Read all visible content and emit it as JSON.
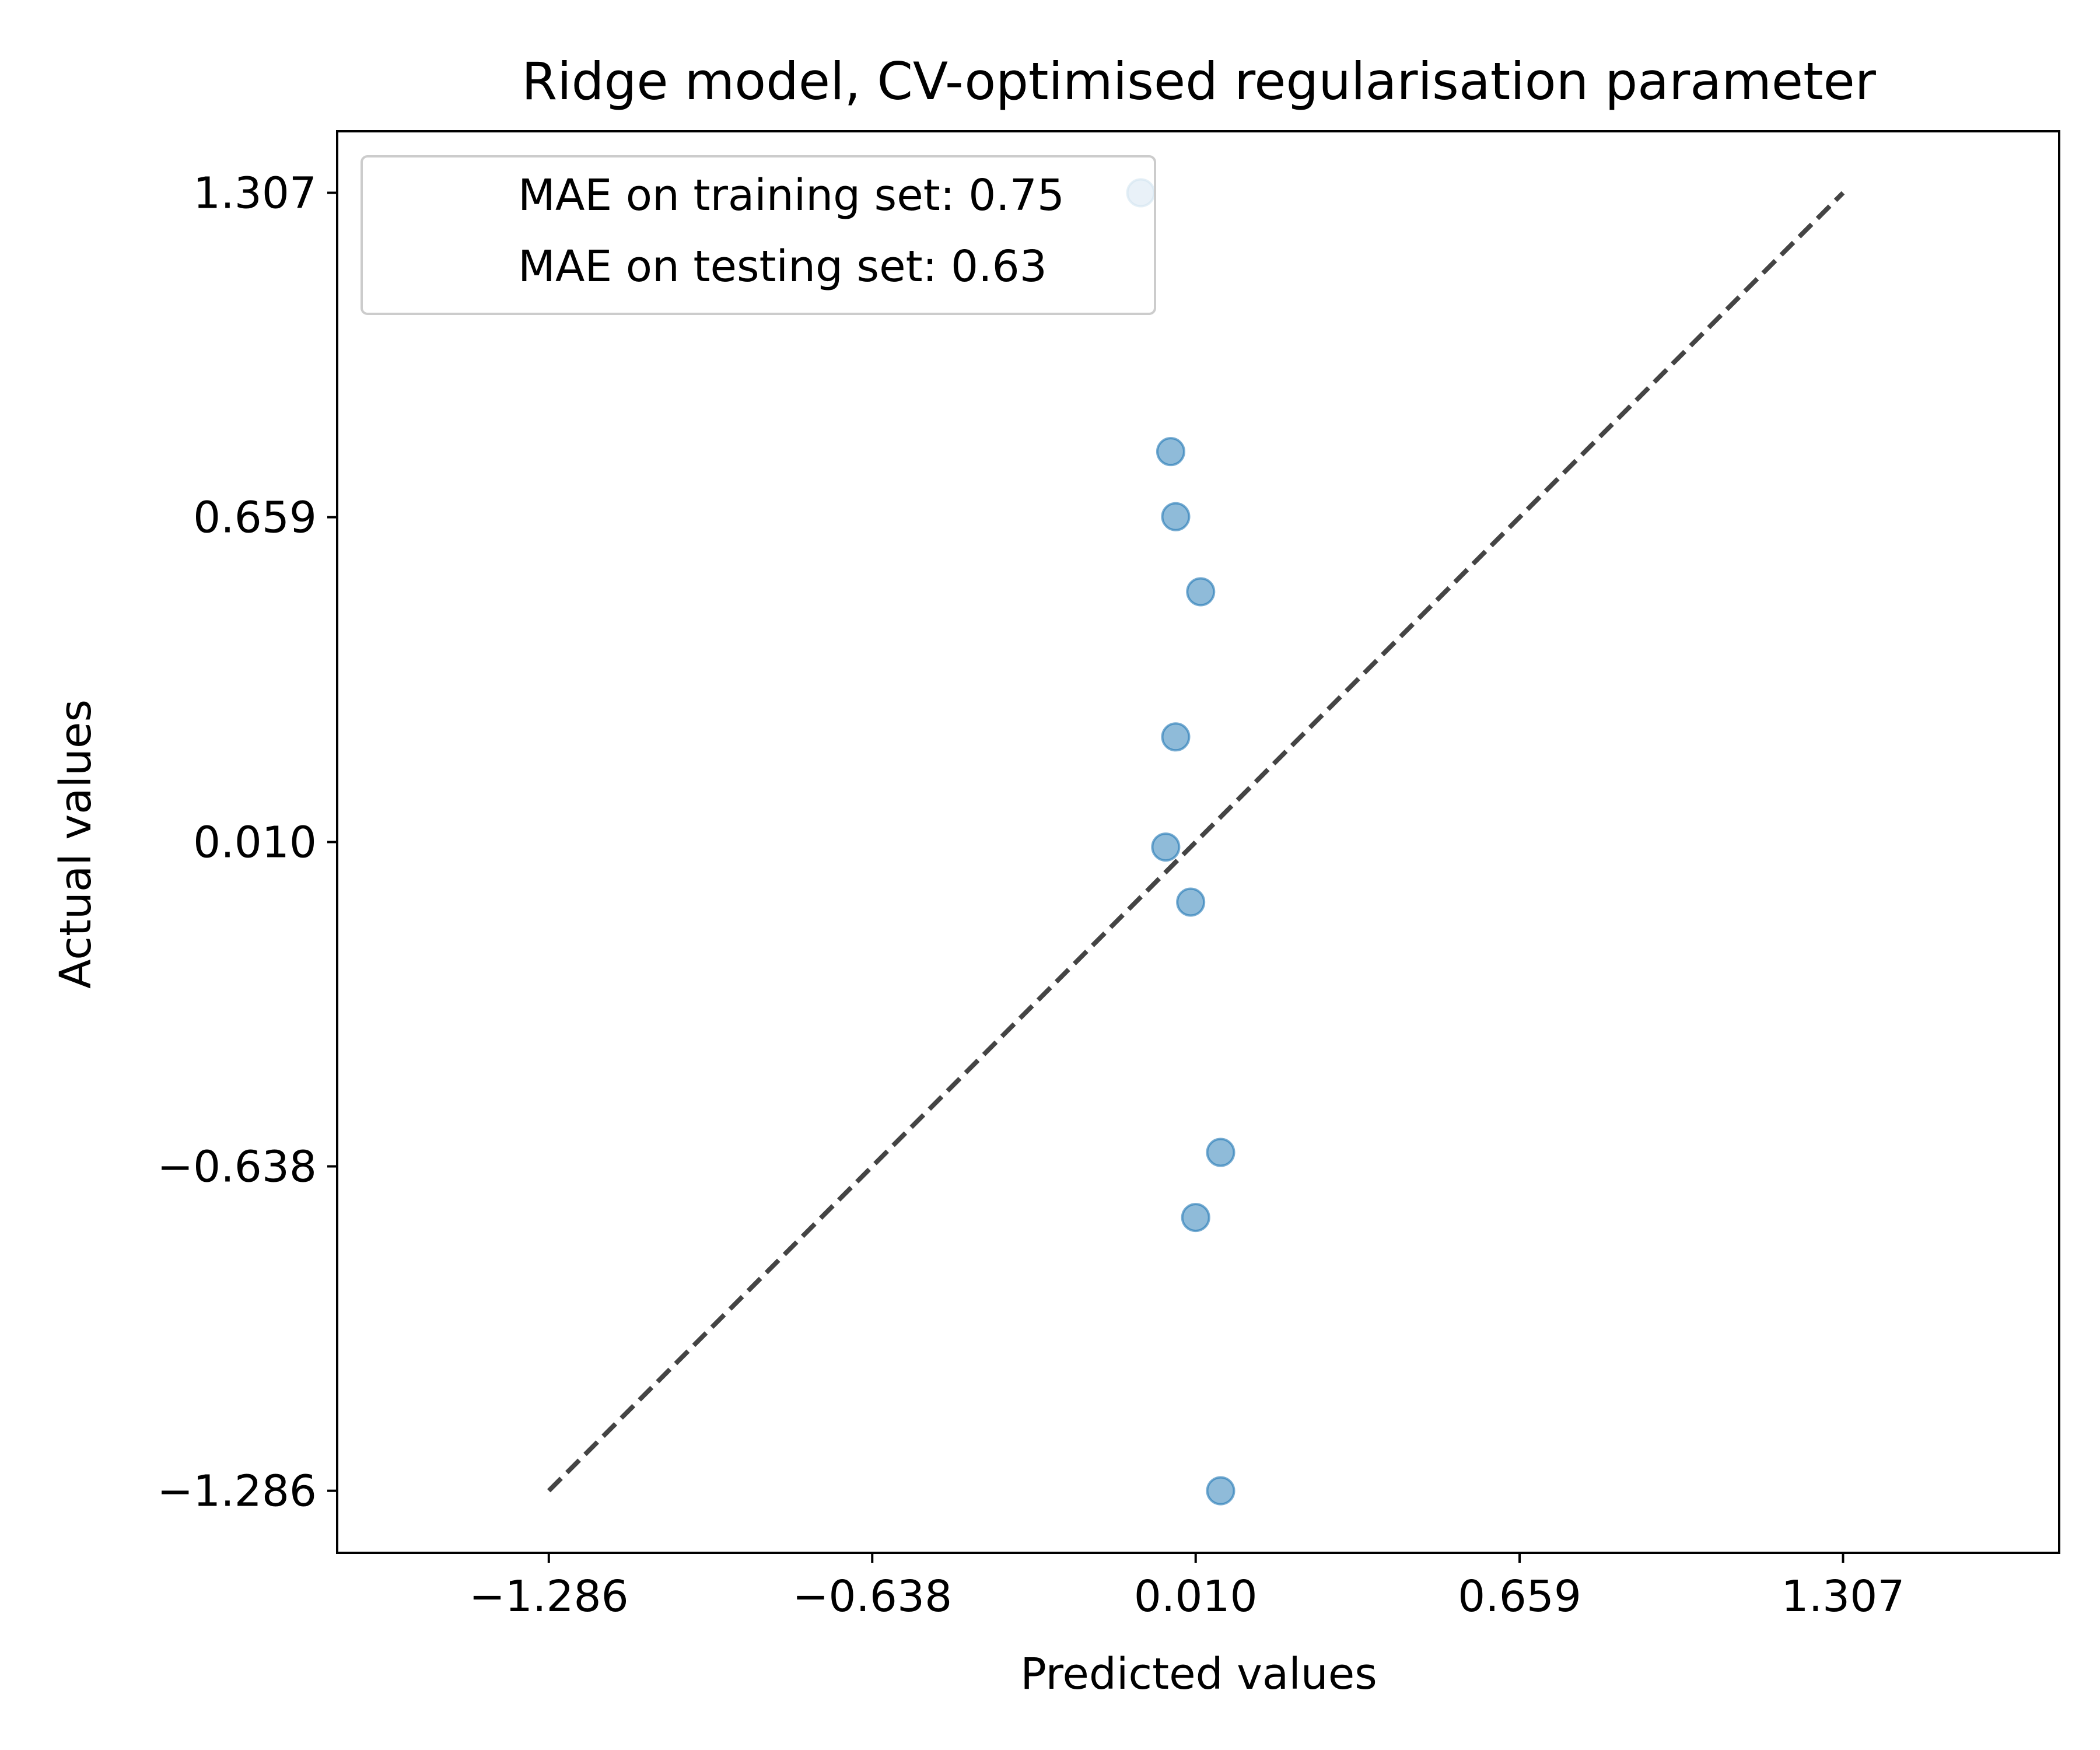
{
  "chart_data": {
    "type": "scatter",
    "title": "Ridge model, CV-optimised regularisation parameter",
    "xlabel": "Predicted values",
    "ylabel": "Actual values",
    "x_ticks": [
      "−1.286",
      "−0.638",
      "0.010",
      "0.659",
      "1.307"
    ],
    "y_ticks": [
      "−1.286",
      "−0.638",
      "0.010",
      "0.659",
      "1.307"
    ],
    "xlim": [
      -1.71,
      1.74
    ],
    "ylim": [
      -1.41,
      1.43
    ],
    "grid": false,
    "legend_position": "top-left",
    "legend": [
      "MAE on training set: 0.75",
      "MAE on testing set: 0.63"
    ],
    "reference_line": {
      "style": "dashed",
      "color": "#444444",
      "x": [
        -1.286,
        1.307
      ],
      "y": [
        -1.286,
        1.307
      ]
    },
    "point_color": "#1f77b4",
    "series": [
      {
        "x": [
          -0.1,
          -0.04,
          -0.03,
          0.02,
          -0.03,
          -0.05,
          0.0,
          0.06,
          0.01,
          0.06
        ],
        "y": [
          1.307,
          0.79,
          0.66,
          0.51,
          0.22,
          0.0,
          -0.11,
          -0.61,
          -0.74,
          -1.286
        ]
      }
    ]
  }
}
